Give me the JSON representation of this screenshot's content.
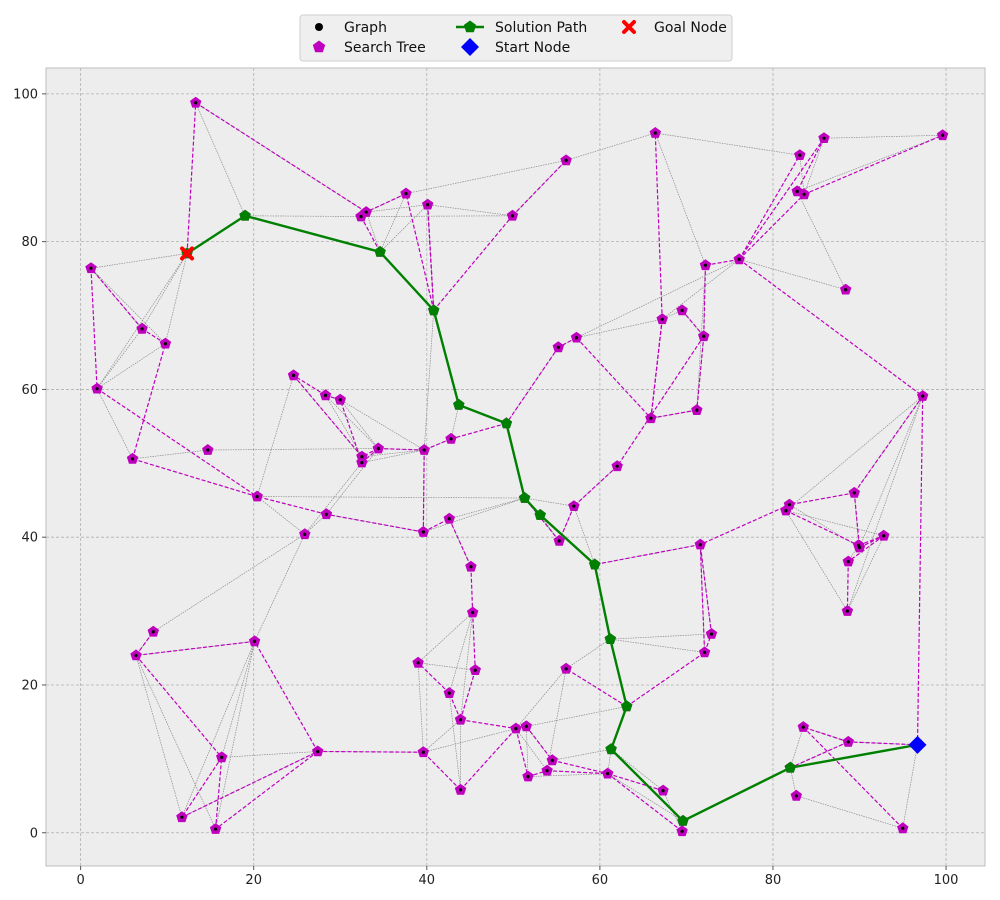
{
  "chart_data": {
    "type": "scatter",
    "xlim": [
      -4,
      104.5
    ],
    "ylim": [
      -4.5,
      103.5
    ],
    "xticks": [
      0,
      20,
      40,
      60,
      80,
      100
    ],
    "yticks": [
      0,
      20,
      40,
      60,
      80,
      100
    ],
    "grid": true,
    "legend_position": "top-center, outside plot",
    "colors": {
      "graph_node": "#000000",
      "graph_edge": "#8a8a8a",
      "search_tree": "#bf00bf",
      "solution_path": "#008000",
      "start_node": "#0000ff",
      "goal_node": "#ff0000",
      "plot_bg": "#ededed"
    },
    "legend": [
      {
        "label": "Graph",
        "marker": "dot"
      },
      {
        "label": "Search Tree",
        "marker": "pentagon"
      },
      {
        "label": "Solution Path",
        "marker": "line-pentagon"
      },
      {
        "label": "Start Node",
        "marker": "diamond"
      },
      {
        "label": "Goal Node",
        "marker": "x"
      }
    ],
    "nodes": [
      [
        96.7,
        11.9
      ],
      [
        82.0,
        8.8
      ],
      [
        69.6,
        1.6
      ],
      [
        61.3,
        11.3
      ],
      [
        63.1,
        17.1
      ],
      [
        61.2,
        26.2
      ],
      [
        59.4,
        36.3
      ],
      [
        53.1,
        43.0
      ],
      [
        51.3,
        45.3
      ],
      [
        49.2,
        55.4
      ],
      [
        43.7,
        57.9
      ],
      [
        40.8,
        70.7
      ],
      [
        34.6,
        78.6
      ],
      [
        19.0,
        83.5
      ],
      [
        12.3,
        78.4
      ],
      [
        13.3,
        98.8
      ],
      [
        1.2,
        76.4
      ],
      [
        7.1,
        68.2
      ],
      [
        9.8,
        66.2
      ],
      [
        1.9,
        60.1
      ],
      [
        6.0,
        50.6
      ],
      [
        14.7,
        51.8
      ],
      [
        20.4,
        45.5
      ],
      [
        25.9,
        40.4
      ],
      [
        28.4,
        43.1
      ],
      [
        24.6,
        61.9
      ],
      [
        28.3,
        59.2
      ],
      [
        30.0,
        58.6
      ],
      [
        34.4,
        52.0
      ],
      [
        32.5,
        50.9
      ],
      [
        32.5,
        50.1
      ],
      [
        39.7,
        51.8
      ],
      [
        42.8,
        53.3
      ],
      [
        39.6,
        40.7
      ],
      [
        42.6,
        42.5
      ],
      [
        45.1,
        36.0
      ],
      [
        45.3,
        29.8
      ],
      [
        45.6,
        22.0
      ],
      [
        39.0,
        23.0
      ],
      [
        42.6,
        18.9
      ],
      [
        43.9,
        15.3
      ],
      [
        39.6,
        10.9
      ],
      [
        43.9,
        5.8
      ],
      [
        27.4,
        11.0
      ],
      [
        20.1,
        25.9
      ],
      [
        8.4,
        27.2
      ],
      [
        6.4,
        24.0
      ],
      [
        16.3,
        10.2
      ],
      [
        11.7,
        2.1
      ],
      [
        15.6,
        0.5
      ],
      [
        50.3,
        14.1
      ],
      [
        51.5,
        14.4
      ],
      [
        54.5,
        9.8
      ],
      [
        53.9,
        8.4
      ],
      [
        51.7,
        7.6
      ],
      [
        56.1,
        22.2
      ],
      [
        60.9,
        8.0
      ],
      [
        67.3,
        5.7
      ],
      [
        69.5,
        0.2
      ],
      [
        55.3,
        39.5
      ],
      [
        57.0,
        44.2
      ],
      [
        62.0,
        49.6
      ],
      [
        71.2,
        57.2
      ],
      [
        65.9,
        56.1
      ],
      [
        67.2,
        69.5
      ],
      [
        69.5,
        70.7
      ],
      [
        72.0,
        67.2
      ],
      [
        72.2,
        76.8
      ],
      [
        76.1,
        77.6
      ],
      [
        71.6,
        39.0
      ],
      [
        72.1,
        24.4
      ],
      [
        72.9,
        26.9
      ],
      [
        55.2,
        65.7
      ],
      [
        57.3,
        67.0
      ],
      [
        56.1,
        91.0
      ],
      [
        49.9,
        83.5
      ],
      [
        40.1,
        85.0
      ],
      [
        37.6,
        86.5
      ],
      [
        33.0,
        84.0
      ],
      [
        32.4,
        83.4
      ],
      [
        66.4,
        94.7
      ],
      [
        83.1,
        91.7
      ],
      [
        85.9,
        94.0
      ],
      [
        99.6,
        94.4
      ],
      [
        82.8,
        86.8
      ],
      [
        83.6,
        86.4
      ],
      [
        88.4,
        73.5
      ],
      [
        97.3,
        59.1
      ],
      [
        81.9,
        44.4
      ],
      [
        81.5,
        43.6
      ],
      [
        89.4,
        46.0
      ],
      [
        89.9,
        38.9
      ],
      [
        90.0,
        38.6
      ],
      [
        92.8,
        40.2
      ],
      [
        88.7,
        36.7
      ],
      [
        88.6,
        30.0
      ],
      [
        83.5,
        14.3
      ],
      [
        82.7,
        5.0
      ],
      [
        88.7,
        12.3
      ],
      [
        95.0,
        0.6
      ]
    ],
    "graph_edges": [
      [
        13,
        15
      ],
      [
        13,
        14
      ],
      [
        13,
        12
      ],
      [
        13,
        79
      ],
      [
        14,
        16
      ],
      [
        14,
        17
      ],
      [
        14,
        18
      ],
      [
        14,
        19
      ],
      [
        15,
        78
      ],
      [
        16,
        17
      ],
      [
        16,
        18
      ],
      [
        17,
        19
      ],
      [
        18,
        19
      ],
      [
        19,
        20
      ],
      [
        20,
        21
      ],
      [
        21,
        28
      ],
      [
        22,
        23
      ],
      [
        22,
        25
      ],
      [
        23,
        30
      ],
      [
        23,
        44
      ],
      [
        24,
        28
      ],
      [
        25,
        29
      ],
      [
        26,
        29
      ],
      [
        27,
        28
      ],
      [
        28,
        31
      ],
      [
        29,
        31
      ],
      [
        30,
        31
      ],
      [
        31,
        32
      ],
      [
        31,
        33
      ],
      [
        32,
        10
      ],
      [
        33,
        8
      ],
      [
        34,
        35
      ],
      [
        12,
        76
      ],
      [
        12,
        77
      ],
      [
        12,
        78
      ],
      [
        78,
        77
      ],
      [
        78,
        76
      ],
      [
        79,
        75
      ],
      [
        76,
        75
      ],
      [
        77,
        74
      ],
      [
        74,
        80
      ],
      [
        75,
        74
      ],
      [
        11,
        76
      ],
      [
        10,
        9
      ],
      [
        9,
        72
      ],
      [
        72,
        73
      ],
      [
        73,
        64
      ],
      [
        64,
        65
      ],
      [
        65,
        66
      ],
      [
        66,
        67
      ],
      [
        67,
        62
      ],
      [
        63,
        62
      ],
      [
        62,
        66
      ],
      [
        64,
        68
      ],
      [
        68,
        86
      ],
      [
        86,
        84
      ],
      [
        84,
        83
      ],
      [
        83,
        82
      ],
      [
        82,
        85
      ],
      [
        85,
        81
      ],
      [
        81,
        80
      ],
      [
        80,
        67
      ],
      [
        68,
        73
      ],
      [
        87,
        92
      ],
      [
        87,
        95
      ],
      [
        87,
        90
      ],
      [
        87,
        89
      ],
      [
        88,
        92
      ],
      [
        89,
        93
      ],
      [
        90,
        91
      ],
      [
        91,
        94
      ],
      [
        93,
        95
      ],
      [
        95,
        89
      ],
      [
        6,
        69
      ],
      [
        69,
        70
      ],
      [
        69,
        71
      ],
      [
        5,
        71
      ],
      [
        5,
        70
      ],
      [
        5,
        55
      ],
      [
        4,
        50
      ],
      [
        3,
        57
      ],
      [
        3,
        56
      ],
      [
        3,
        52
      ],
      [
        2,
        56
      ],
      [
        2,
        58
      ],
      [
        57,
        58
      ],
      [
        1,
        96
      ],
      [
        1,
        97
      ],
      [
        1,
        98
      ],
      [
        0,
        98
      ],
      [
        0,
        99
      ],
      [
        97,
        99
      ],
      [
        96,
        98
      ],
      [
        46,
        45
      ],
      [
        46,
        44
      ],
      [
        46,
        48
      ],
      [
        46,
        49
      ],
      [
        45,
        23
      ],
      [
        44,
        47
      ],
      [
        44,
        48
      ],
      [
        44,
        49
      ],
      [
        47,
        43
      ],
      [
        48,
        43
      ],
      [
        43,
        41
      ],
      [
        41,
        40
      ],
      [
        41,
        38
      ],
      [
        40,
        36
      ],
      [
        39,
        36
      ],
      [
        36,
        38
      ],
      [
        37,
        38
      ],
      [
        42,
        40
      ],
      [
        41,
        50
      ],
      [
        50,
        53
      ],
      [
        51,
        52
      ],
      [
        51,
        54
      ],
      [
        54,
        56
      ],
      [
        53,
        55
      ],
      [
        55,
        50
      ],
      [
        59,
        60
      ],
      [
        60,
        6
      ],
      [
        60,
        8
      ],
      [
        61,
        60
      ],
      [
        8,
        59
      ],
      [
        7,
        59
      ],
      [
        23,
        24
      ],
      [
        26,
        28
      ],
      [
        27,
        31
      ],
      [
        33,
        24
      ],
      [
        11,
        31
      ],
      [
        8,
        22
      ],
      [
        34,
        8
      ],
      [
        39,
        42
      ]
    ],
    "search_tree_edges": [
      [
        0,
        98
      ],
      [
        98,
        96
      ],
      [
        96,
        99
      ],
      [
        98,
        1
      ],
      [
        0,
        87
      ],
      [
        87,
        90
      ],
      [
        90,
        92
      ],
      [
        92,
        93
      ],
      [
        90,
        88
      ],
      [
        88,
        89
      ],
      [
        89,
        91
      ],
      [
        91,
        93
      ],
      [
        93,
        94
      ],
      [
        94,
        95
      ],
      [
        88,
        69
      ],
      [
        69,
        70
      ],
      [
        70,
        71
      ],
      [
        71,
        69
      ],
      [
        69,
        6
      ],
      [
        68,
        87
      ],
      [
        68,
        67
      ],
      [
        67,
        66
      ],
      [
        66,
        61
      ],
      [
        61,
        60
      ],
      [
        60,
        59
      ],
      [
        59,
        8
      ],
      [
        66,
        62
      ],
      [
        62,
        63
      ],
      [
        63,
        64
      ],
      [
        64,
        80
      ],
      [
        64,
        63
      ],
      [
        65,
        66
      ],
      [
        68,
        82
      ],
      [
        68,
        81
      ],
      [
        68,
        85
      ],
      [
        85,
        83
      ],
      [
        82,
        84
      ],
      [
        84,
        85
      ],
      [
        73,
        63
      ],
      [
        73,
        72
      ],
      [
        72,
        9
      ],
      [
        9,
        32
      ],
      [
        32,
        31
      ],
      [
        31,
        28
      ],
      [
        28,
        29
      ],
      [
        29,
        30
      ],
      [
        30,
        27
      ],
      [
        27,
        26
      ],
      [
        26,
        25
      ],
      [
        25,
        29
      ],
      [
        28,
        30
      ],
      [
        31,
        33
      ],
      [
        33,
        24
      ],
      [
        24,
        22
      ],
      [
        22,
        20
      ],
      [
        20,
        18
      ],
      [
        18,
        17
      ],
      [
        17,
        16
      ],
      [
        16,
        19
      ],
      [
        19,
        22
      ],
      [
        33,
        34
      ],
      [
        34,
        35
      ],
      [
        35,
        36
      ],
      [
        36,
        37
      ],
      [
        37,
        40
      ],
      [
        40,
        39
      ],
      [
        39,
        38
      ],
      [
        40,
        50
      ],
      [
        50,
        51
      ],
      [
        51,
        52
      ],
      [
        52,
        56
      ],
      [
        56,
        58
      ],
      [
        56,
        57
      ],
      [
        50,
        54
      ],
      [
        54,
        53
      ],
      [
        53,
        56
      ],
      [
        42,
        50
      ],
      [
        42,
        41
      ],
      [
        41,
        43
      ],
      [
        43,
        44
      ],
      [
        44,
        46
      ],
      [
        46,
        47
      ],
      [
        47,
        48
      ],
      [
        48,
        43
      ],
      [
        43,
        49
      ],
      [
        49,
        47
      ],
      [
        46,
        45
      ],
      [
        4,
        55
      ],
      [
        4,
        70
      ],
      [
        11,
        76
      ],
      [
        76,
        11
      ],
      [
        11,
        77
      ],
      [
        77,
        78
      ],
      [
        78,
        79
      ],
      [
        79,
        12
      ],
      [
        11,
        75
      ],
      [
        75,
        74
      ],
      [
        15,
        78
      ],
      [
        14,
        15
      ]
    ],
    "solution_path": [
      [
        96.7,
        11.9
      ],
      [
        82.0,
        8.8
      ],
      [
        69.6,
        1.6
      ],
      [
        61.3,
        11.3
      ],
      [
        63.1,
        17.1
      ],
      [
        61.2,
        26.2
      ],
      [
        59.4,
        36.3
      ],
      [
        53.1,
        43.0
      ],
      [
        51.3,
        45.3
      ],
      [
        49.2,
        55.4
      ],
      [
        43.7,
        57.9
      ],
      [
        40.8,
        70.7
      ],
      [
        34.6,
        78.6
      ],
      [
        19.0,
        83.5
      ],
      [
        12.3,
        78.4
      ]
    ],
    "start_node": [
      96.7,
      11.9
    ],
    "goal_node": [
      12.3,
      78.4
    ]
  }
}
